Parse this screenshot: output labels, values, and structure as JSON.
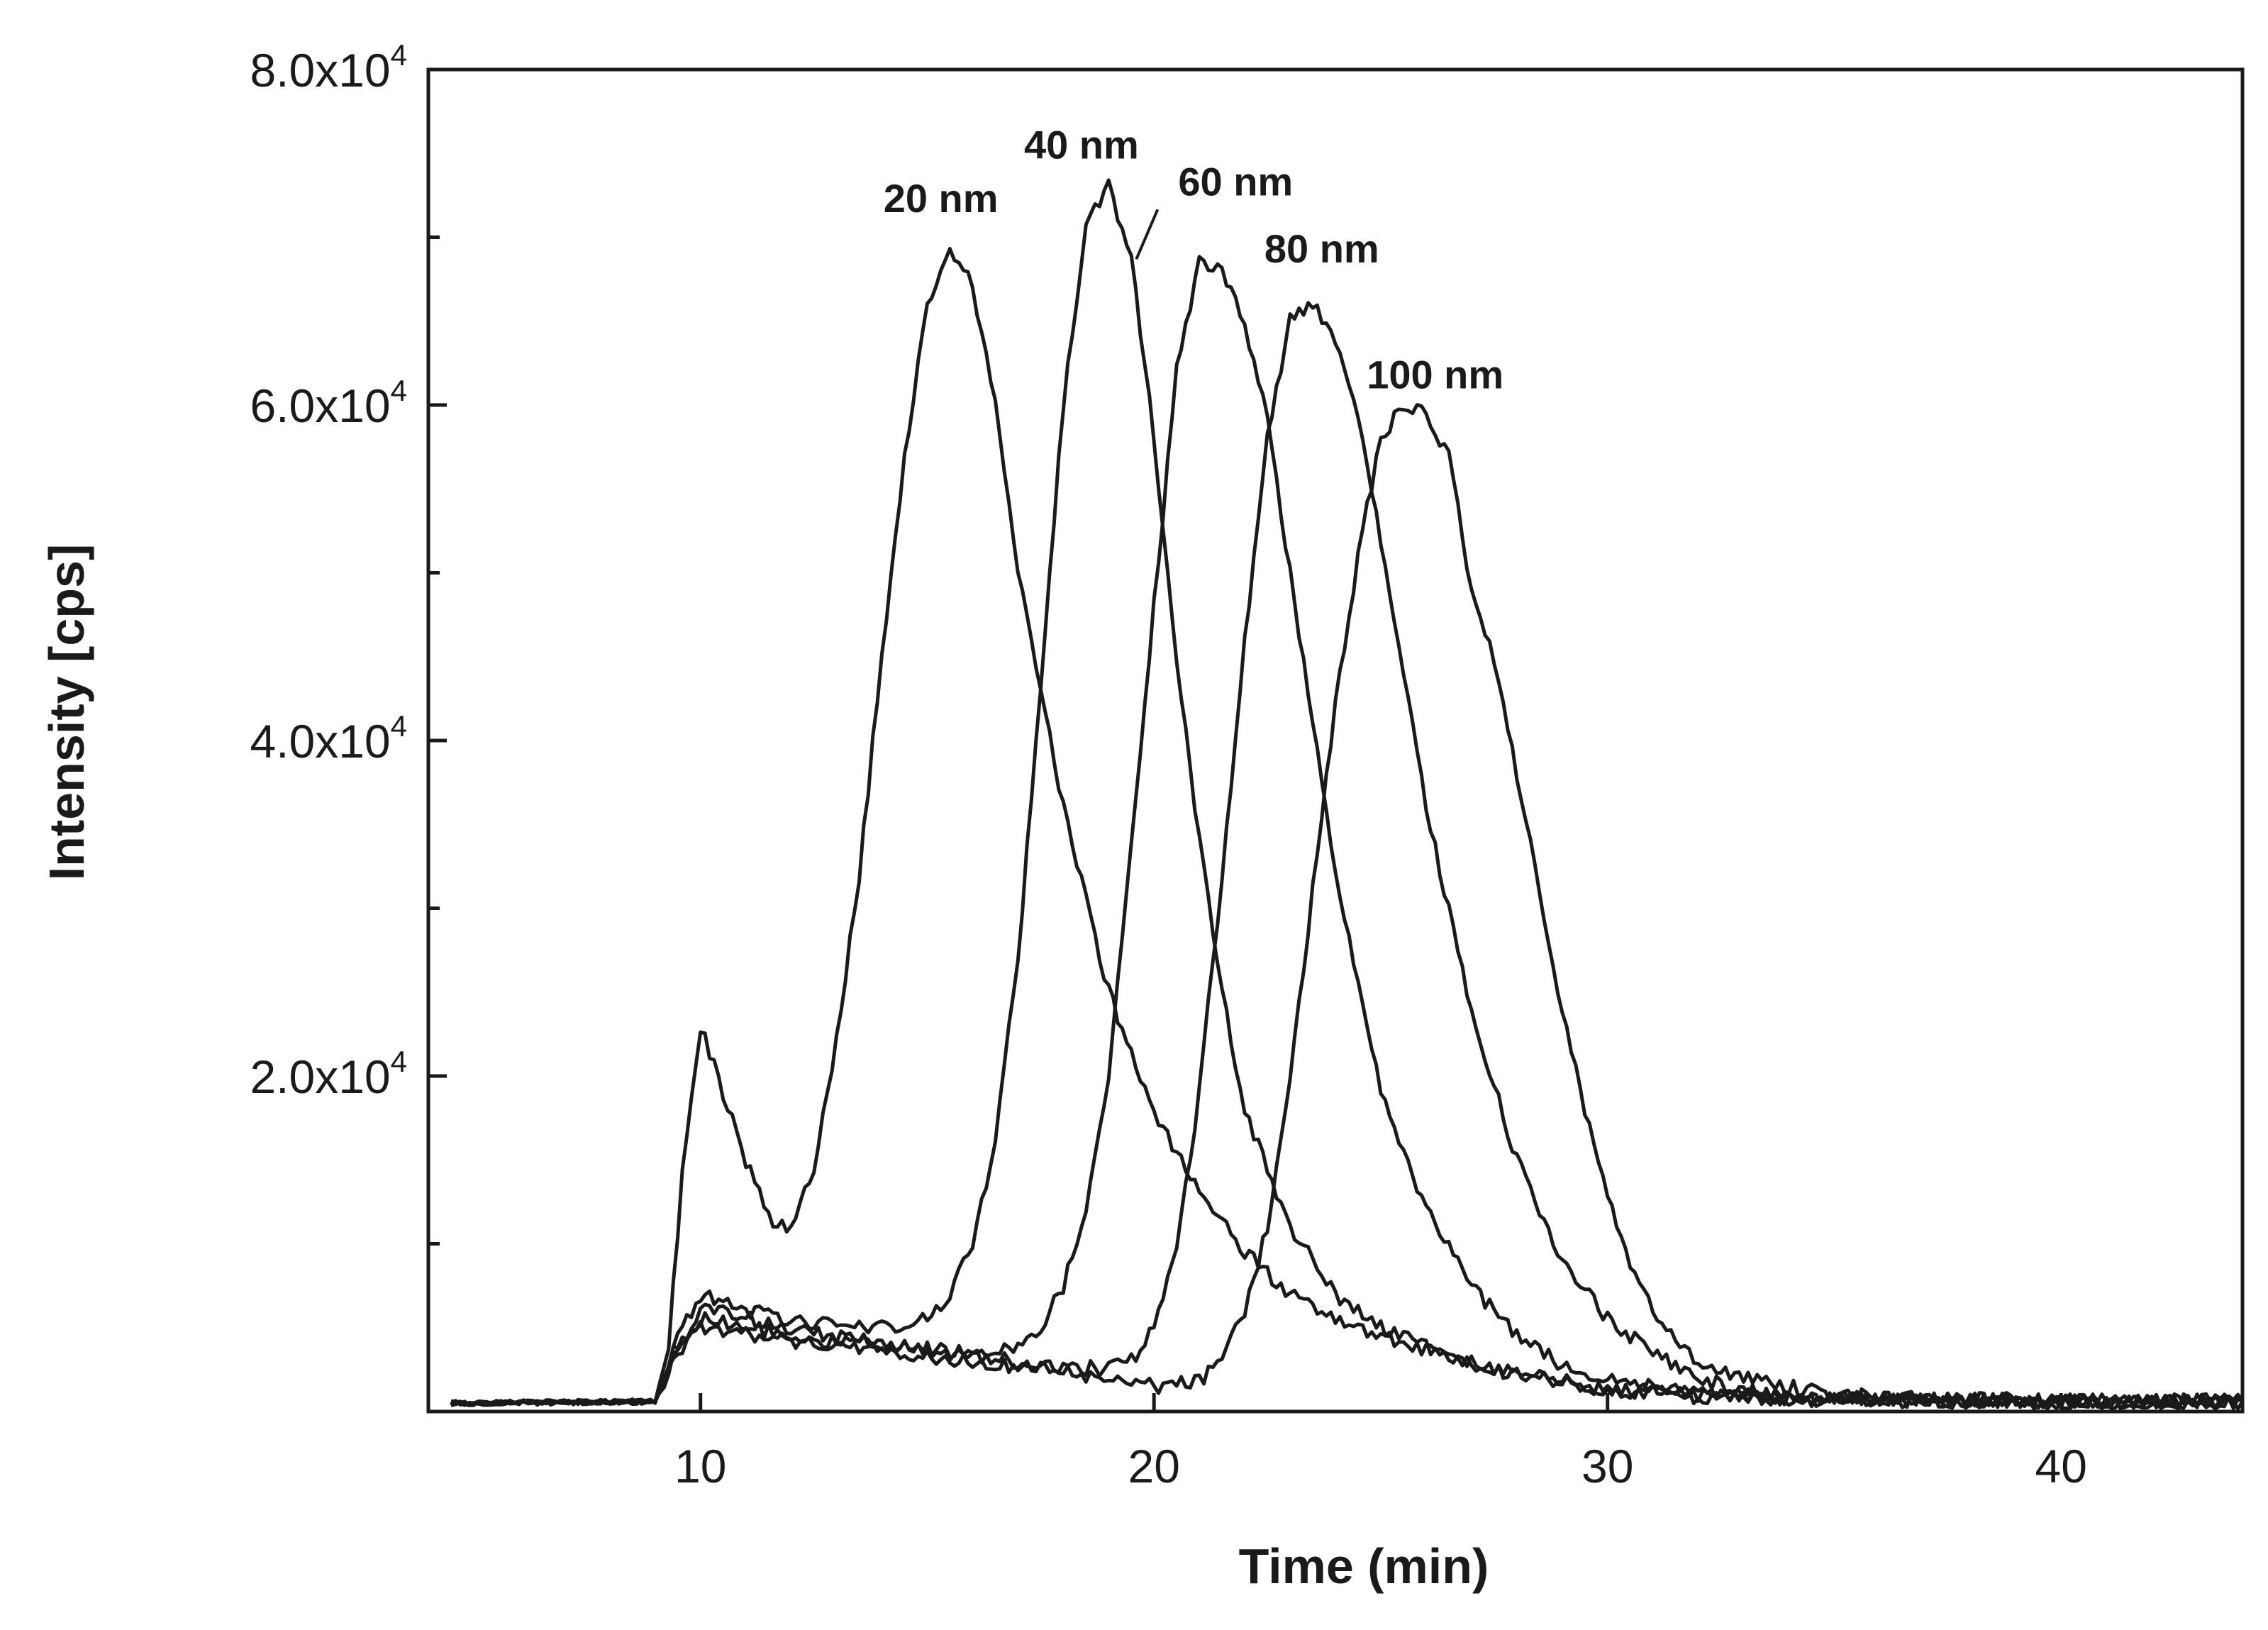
{
  "chart_data": {
    "type": "line",
    "title": "",
    "xlabel": "Time (min)",
    "ylabel": "Intensity [cps]",
    "xlim": [
      4,
      44
    ],
    "ylim": [
      0,
      80000
    ],
    "x_ticks": [
      10,
      20,
      30,
      40
    ],
    "x_tick_labels": [
      "10",
      "20",
      "30",
      "40"
    ],
    "y_ticks": [
      20000,
      40000,
      60000,
      80000
    ],
    "y_tick_labels": [
      {
        "mantissa": "2.0x10",
        "exp": "4"
      },
      {
        "mantissa": "4.0x10",
        "exp": "4"
      },
      {
        "mantissa": "6.0x10",
        "exp": "4"
      },
      {
        "mantissa": "8.0x10",
        "exp": "4"
      }
    ],
    "y_minor_ticks": [
      10000,
      30000,
      50000,
      70000
    ],
    "baseline": 500,
    "series": [
      {
        "name": "20 nm",
        "label_at": [
          15.3,
          71500
        ],
        "x": [
          4.5,
          9.0,
          9.3,
          9.6,
          10.0,
          10.5,
          11.0,
          11.5,
          12.0,
          12.5,
          13.0,
          13.5,
          14.0,
          14.5,
          15.0,
          15.5,
          16.0,
          16.5,
          17.0,
          18.0,
          19.0,
          20.0,
          21.0,
          22.0,
          23.0,
          24.0,
          25.0,
          26.0,
          27.0,
          28.0,
          30.0,
          32.0,
          35.0,
          40.0,
          44.0
        ],
        "values": [
          500,
          600,
          4000,
          14000,
          23000,
          19000,
          15000,
          11500,
          11000,
          14500,
          22000,
          32000,
          45000,
          57000,
          66000,
          69500,
          67000,
          60000,
          50000,
          36000,
          25000,
          18000,
          13000,
          9500,
          7000,
          5500,
          4500,
          3600,
          2900,
          2200,
          1400,
          900,
          700,
          600,
          600
        ]
      },
      {
        "name": "40 nm",
        "label_at": [
          18.4,
          74700
        ],
        "x": [
          4.5,
          9.0,
          9.4,
          10.0,
          10.5,
          11.0,
          12.0,
          13.0,
          14.0,
          15.0,
          15.5,
          16.0,
          16.5,
          17.0,
          17.5,
          18.0,
          18.5,
          19.0,
          19.5,
          20.0,
          20.5,
          21.0,
          21.5,
          22.0,
          23.0,
          24.0,
          25.0,
          26.0,
          27.0,
          28.0,
          30.0,
          32.0,
          35.0,
          40.0,
          44.0
        ],
        "values": [
          500,
          600,
          4000,
          7000,
          6500,
          6000,
          5500,
          5200,
          5000,
          5500,
          7000,
          10000,
          16000,
          27000,
          43000,
          60000,
          71000,
          73000,
          69000,
          58000,
          45000,
          34000,
          25000,
          18000,
          11000,
          7000,
          5000,
          3800,
          2900,
          2200,
          1300,
          900,
          700,
          600,
          600
        ]
      },
      {
        "name": "60 nm",
        "label_at": [
          21.8,
          72500
        ],
        "x": [
          4.5,
          9.0,
          9.4,
          10.0,
          10.5,
          11.0,
          12.0,
          13.0,
          14.0,
          15.0,
          16.0,
          17.0,
          17.5,
          18.0,
          18.5,
          19.0,
          19.5,
          20.0,
          20.5,
          21.0,
          21.5,
          22.0,
          22.5,
          23.0,
          24.0,
          25.0,
          26.0,
          27.0,
          28.0,
          29.0,
          30.0,
          32.0,
          35.0,
          40.0,
          44.0
        ],
        "values": [
          500,
          600,
          3500,
          6000,
          6000,
          5600,
          5000,
          4500,
          4000,
          3800,
          3500,
          4000,
          5000,
          7500,
          12000,
          20000,
          34000,
          48000,
          62000,
          68500,
          68000,
          65000,
          59000,
          50000,
          32000,
          19000,
          12000,
          7500,
          4500,
          2800,
          2000,
          1000,
          700,
          600,
          600
        ]
      },
      {
        "name": "80 nm",
        "label_at": [
          23.7,
          68500
        ],
        "x": [
          4.5,
          9.0,
          9.4,
          10.0,
          11.0,
          12.0,
          13.0,
          14.0,
          15.0,
          16.0,
          17.0,
          18.0,
          19.0,
          19.5,
          20.0,
          20.5,
          21.0,
          21.5,
          22.0,
          22.5,
          23.0,
          23.5,
          24.0,
          24.5,
          25.0,
          25.5,
          26.0,
          27.0,
          28.0,
          29.0,
          30.0,
          31.0,
          32.0,
          33.0,
          35.0,
          40.0,
          44.0
        ],
        "values": [
          500,
          600,
          3000,
          5500,
          5000,
          4500,
          4200,
          3900,
          3600,
          3300,
          3000,
          2700,
          2500,
          3000,
          5000,
          10000,
          19000,
          32000,
          46000,
          58000,
          65000,
          66000,
          64000,
          59000,
          52000,
          44000,
          36000,
          24000,
          15000,
          9000,
          5500,
          3500,
          2000,
          1200,
          800,
          600,
          600
        ]
      },
      {
        "name": "100 nm",
        "label_at": [
          26.2,
          61000
        ],
        "x": [
          4.5,
          9.0,
          9.4,
          10.0,
          11.0,
          12.0,
          14.0,
          16.0,
          18.0,
          19.0,
          20.0,
          21.0,
          21.5,
          22.0,
          22.5,
          23.0,
          23.5,
          24.0,
          24.5,
          25.0,
          25.5,
          26.0,
          26.5,
          27.0,
          27.5,
          28.0,
          28.5,
          29.0,
          29.5,
          30.0,
          30.5,
          31.0,
          32.0,
          33.0,
          34.0,
          35.0,
          37.0,
          40.0,
          44.0
        ],
        "values": [
          500,
          600,
          3000,
          5000,
          4600,
          4200,
          3600,
          3000,
          2400,
          2000,
          1500,
          1800,
          3000,
          6000,
          11000,
          20000,
          31000,
          42000,
          51000,
          58000,
          60000,
          59500,
          57000,
          49000,
          45000,
          38000,
          31000,
          24000,
          18000,
          13000,
          9000,
          6000,
          3000,
          2000,
          1500,
          1000,
          800,
          600,
          600
        ]
      }
    ]
  }
}
